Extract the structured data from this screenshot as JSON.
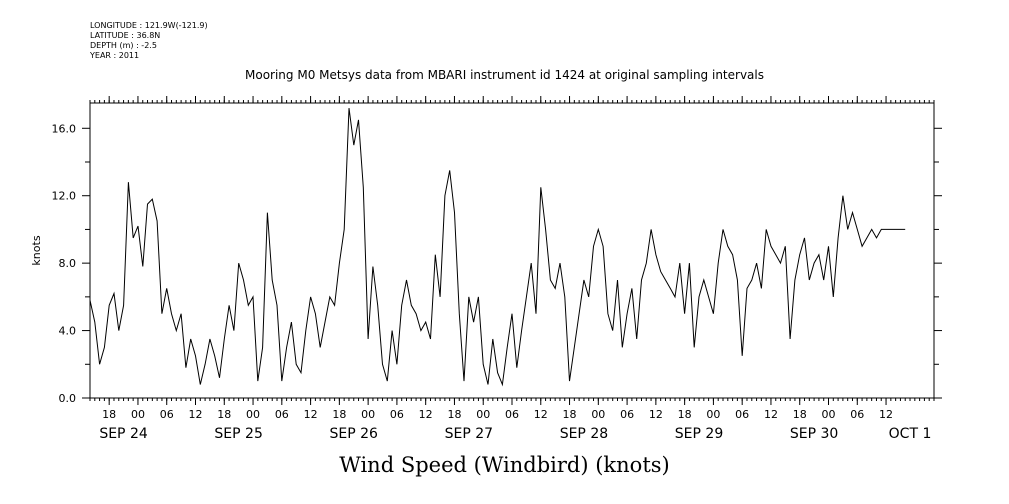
{
  "metadata": {
    "longitude": "LONGITUDE : 121.9W(-121.9)",
    "latitude": "LATITUDE : 36.8N",
    "depth": "DEPTH (m) : -2.5",
    "year": "YEAR : 2011"
  },
  "chart_data": {
    "type": "line",
    "title": "Mooring M0 Metsys data from MBARI instrument id 1424 at original sampling intervals",
    "xlabel": "Wind Speed (Windbird) (knots)",
    "ylabel": "knots",
    "ylim": [
      0,
      17.5
    ],
    "xlim_hours_from_sep24_00": [
      -10,
      126
    ],
    "yticks": [
      0.0,
      4.0,
      8.0,
      12.0,
      16.0
    ],
    "ytick_labels": [
      "0.0",
      "4.0",
      "8.0",
      "12.0",
      "16.0"
    ],
    "hour_ticks": [
      {
        "t": -6,
        "label": "18"
      },
      {
        "t": 0,
        "label": "00"
      },
      {
        "t": 6,
        "label": "06"
      },
      {
        "t": 12,
        "label": "12"
      },
      {
        "t": 18,
        "label": "18"
      },
      {
        "t": 24,
        "label": "00"
      },
      {
        "t": 30,
        "label": "06"
      },
      {
        "t": 36,
        "label": "12"
      },
      {
        "t": 42,
        "label": "18"
      },
      {
        "t": 48,
        "label": "00"
      },
      {
        "t": 54,
        "label": "06"
      },
      {
        "t": 60,
        "label": "12"
      },
      {
        "t": 66,
        "label": "18"
      },
      {
        "t": 72,
        "label": "00"
      },
      {
        "t": 78,
        "label": "06"
      },
      {
        "t": 84,
        "label": "12"
      },
      {
        "t": 90,
        "label": "18"
      },
      {
        "t": 96,
        "label": "00"
      },
      {
        "t": 102,
        "label": "06"
      },
      {
        "t": 108,
        "label": "12"
      },
      {
        "t": 114,
        "label": "18"
      },
      {
        "t": 120,
        "label": "00"
      },
      {
        "t": 126,
        "label": "06"
      },
      {
        "t": 132,
        "label": "12"
      },
      {
        "t": 138,
        "label": "18"
      },
      {
        "t": 144,
        "label": "00"
      },
      {
        "t": 150,
        "label": "06"
      },
      {
        "t": 156,
        "label": "12"
      }
    ],
    "date_labels": [
      {
        "t": -3,
        "label": "SEP 24"
      },
      {
        "t": 21,
        "label": "SEP 25"
      },
      {
        "t": 45,
        "label": "SEP 26"
      },
      {
        "t": 69,
        "label": "SEP 27"
      },
      {
        "t": 93,
        "label": "SEP 28"
      },
      {
        "t": 117,
        "label": "SEP 29"
      },
      {
        "t": 141,
        "label": "SEP 30"
      },
      {
        "t": 161,
        "label": "OCT  1"
      }
    ],
    "grid": false,
    "series": [
      {
        "x_hours_from_sep24_00": [
          -10,
          -9,
          -8,
          -7,
          -6,
          -5,
          -4,
          -3,
          -2,
          -1,
          0,
          1,
          2,
          3,
          4,
          5,
          6,
          7,
          8,
          9,
          10,
          11,
          12,
          13,
          14,
          15,
          16,
          17,
          18,
          19,
          20,
          21,
          22,
          23,
          24,
          25,
          26,
          27,
          28,
          29,
          30,
          31,
          32,
          33,
          34,
          35,
          36,
          37,
          38,
          39,
          40,
          41,
          42,
          43,
          44,
          45,
          46,
          47,
          48,
          49,
          50,
          51,
          52,
          53,
          54,
          55,
          56,
          57,
          58,
          59,
          60,
          61,
          62,
          63,
          64,
          65,
          66,
          67,
          68,
          69,
          70,
          71,
          72,
          73,
          74,
          75,
          76,
          77,
          78,
          79,
          80,
          81,
          82,
          83,
          84,
          85,
          86,
          87,
          88,
          89,
          90,
          91,
          92,
          93,
          94,
          95,
          96,
          97,
          98,
          99,
          100,
          101,
          102,
          103,
          104,
          105,
          106,
          107,
          108,
          109,
          110,
          111,
          112,
          113,
          114,
          115,
          116,
          117,
          118,
          119,
          120,
          121,
          122,
          123,
          124,
          125,
          126,
          127,
          128,
          129,
          130,
          131,
          132,
          133,
          134,
          135,
          136,
          137,
          138,
          139,
          140,
          141,
          142,
          143,
          144,
          145,
          146,
          147,
          148,
          149,
          150,
          151,
          152,
          153,
          154,
          155,
          156,
          157,
          158,
          159,
          160,
          161,
          162,
          163,
          164,
          165,
          166
        ],
        "values": [
          5.8,
          4.5,
          2.0,
          3.0,
          5.5,
          6.2,
          4.0,
          5.5,
          12.8,
          9.5,
          10.2,
          7.8,
          11.5,
          11.8,
          10.5,
          5.0,
          6.5,
          5.0,
          4.0,
          5.0,
          1.8,
          3.5,
          2.5,
          0.8,
          2.0,
          3.5,
          2.5,
          1.2,
          3.5,
          5.5,
          4.0,
          8.0,
          7.0,
          5.5,
          6.0,
          1.0,
          3.0,
          11.0,
          7.0,
          5.5,
          1.0,
          3.0,
          4.5,
          2.0,
          1.5,
          4.0,
          6.0,
          5.0,
          3.0,
          4.5,
          6.0,
          5.5,
          8.0,
          10.0,
          17.2,
          15.0,
          16.5,
          12.5,
          3.5,
          7.8,
          5.5,
          2.0,
          1.0,
          4.0,
          2.0,
          5.5,
          7.0,
          5.5,
          5.0,
          4.0,
          4.5,
          3.5,
          8.5,
          6.0,
          12.0,
          13.5,
          11.0,
          5.0,
          1.0,
          6.0,
          4.5,
          6.0,
          2.0,
          0.8,
          3.5,
          1.5,
          0.8,
          3.0,
          5.0,
          1.8,
          4.0,
          6.0,
          8.0,
          5.0,
          12.5,
          10.0,
          7.0,
          6.5,
          8.0,
          6.0,
          1.0,
          3.0,
          5.0,
          7.0,
          6.0,
          9.0,
          10.0,
          9.0,
          5.0,
          4.0,
          7.0,
          3.0,
          5.0,
          6.5,
          3.5,
          7.0,
          8.0,
          10.0,
          8.5,
          7.5,
          7.0,
          6.5,
          6.0,
          8.0,
          5.0,
          8.0,
          3.0,
          6.0,
          7.0,
          6.0,
          5.0,
          8.0,
          10.0,
          9.0,
          8.5,
          7.0,
          2.5,
          6.5,
          7.0,
          8.0,
          6.5,
          10.0,
          9.0,
          8.5,
          8.0,
          9.0,
          3.5,
          7.0,
          8.5,
          9.5,
          7.0,
          8.0,
          8.5,
          7.0,
          9.0,
          6.0,
          9.5,
          12.0,
          10.0,
          11.0,
          10.0,
          9.0,
          9.5,
          10.0,
          9.5,
          10.0,
          10.0,
          10.0,
          10.0,
          10.0,
          10.0
        ],
        "color": "#000000"
      }
    ]
  }
}
